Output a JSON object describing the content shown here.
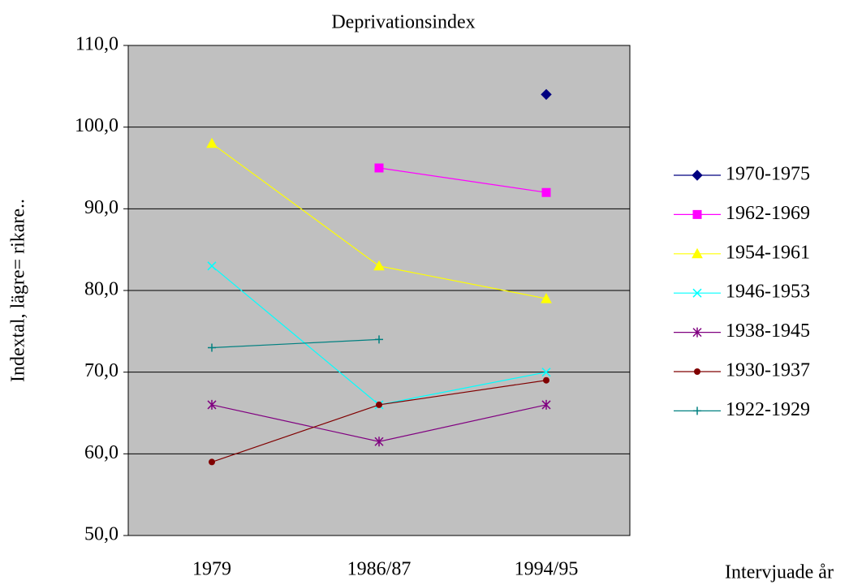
{
  "chart_data": {
    "type": "line",
    "title": "Deprivationsindex",
    "y_label": "Indextal, lägre= rikare..",
    "x_label": "Intervjuade år",
    "categories": [
      "1979",
      "1986/87",
      "1994/95"
    ],
    "ylim": [
      50,
      110
    ],
    "yticks": [
      {
        "value": 50,
        "label": "50,0"
      },
      {
        "value": 60,
        "label": "60,0"
      },
      {
        "value": 70,
        "label": "70,0"
      },
      {
        "value": 80,
        "label": "80,0"
      },
      {
        "value": 90,
        "label": "90,0"
      },
      {
        "value": 100,
        "label": "100,0"
      },
      {
        "value": 110,
        "label": "110,0"
      }
    ],
    "grid": true,
    "legend": "right",
    "series": [
      {
        "name": "1970-1975",
        "color": "#000080",
        "marker": "diamond",
        "values": [
          null,
          null,
          104
        ]
      },
      {
        "name": "1962-1969",
        "color": "#ff00ff",
        "marker": "square",
        "values": [
          null,
          95,
          92
        ]
      },
      {
        "name": "1954-1961",
        "color": "#ffff00",
        "marker": "triangle",
        "values": [
          98,
          83,
          79
        ]
      },
      {
        "name": "1946-1953",
        "color": "#00ffff",
        "marker": "x",
        "values": [
          83,
          66,
          70
        ]
      },
      {
        "name": "1938-1945",
        "color": "#800080",
        "marker": "star",
        "values": [
          66,
          61.5,
          66
        ]
      },
      {
        "name": "1930-1937",
        "color": "#800000",
        "marker": "circle",
        "values": [
          59,
          66,
          69
        ]
      },
      {
        "name": "1922-1929",
        "color": "#008080",
        "marker": "plus",
        "values": [
          73,
          74,
          null
        ]
      }
    ]
  }
}
